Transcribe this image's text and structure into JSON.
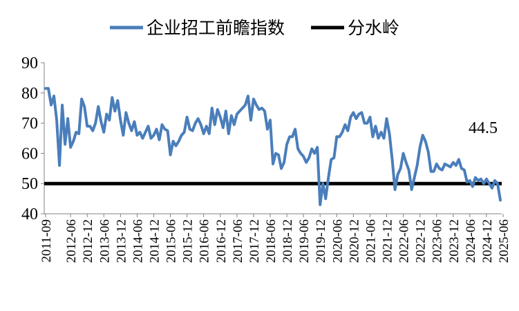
{
  "chart_data": {
    "type": "line",
    "title": "",
    "xlabel": "",
    "ylabel": "",
    "ylim": [
      40,
      90
    ],
    "yticks": [
      "40",
      "50",
      "60",
      "70",
      "80",
      "90"
    ],
    "x_start": "2011-09",
    "x_step_months": 1,
    "xticks": [
      "2011-09",
      "2012-06",
      "2012-12",
      "2013-06",
      "2013-12",
      "2014-06",
      "2014-12",
      "2015-06",
      "2015-12",
      "2016-06",
      "2016-12",
      "2017-06",
      "2017-12",
      "2018-06",
      "2018-12",
      "2019-06",
      "2019-12",
      "2020-06",
      "2020-12",
      "2021-06",
      "2021-12",
      "2022-06",
      "2022-12",
      "2023-06",
      "2023-12",
      "2024-06",
      "2024-12",
      "2025-06"
    ],
    "grid": false,
    "legend_position": "top",
    "series": [
      {
        "name": "企业招工前瞻指数",
        "color": "#4a7ebb",
        "values": [
          81.5,
          81.5,
          76,
          79,
          71,
          56,
          76,
          63,
          71.5,
          62,
          64,
          67,
          66.5,
          78,
          75.5,
          69,
          69,
          67.5,
          70,
          75.5,
          70.5,
          67,
          73,
          71,
          78.5,
          74,
          77.5,
          71,
          66,
          73.5,
          70,
          67.5,
          70.5,
          66,
          67,
          65,
          67,
          69,
          65,
          66,
          68,
          64.5,
          69.5,
          68,
          67.5,
          59.5,
          64,
          62.5,
          64,
          66,
          67,
          72,
          68,
          67.5,
          70,
          71.5,
          69.5,
          66.5,
          69,
          66.5,
          75,
          69.5,
          74.5,
          72,
          68.5,
          74,
          66.5,
          72.5,
          69.5,
          73,
          74,
          75,
          76,
          79,
          71,
          78,
          76,
          74.5,
          75,
          74,
          68,
          71,
          56.5,
          60,
          59.5,
          55,
          57,
          63,
          65.5,
          65.5,
          68,
          61.5,
          60,
          59,
          57,
          58.5,
          61.5,
          60,
          62,
          43,
          50,
          45,
          52,
          58,
          58.5,
          65.5,
          65.5,
          67,
          69.5,
          67.5,
          72,
          73.5,
          71.5,
          73,
          73.5,
          70,
          70,
          72,
          65.5,
          69,
          65,
          67,
          65,
          71.5,
          66.5,
          58,
          48,
          53,
          55,
          60,
          57,
          54.5,
          48,
          52,
          56,
          62,
          66,
          64,
          60.5,
          54,
          54,
          56.5,
          55,
          54.5,
          56.5,
          56,
          55.5,
          57,
          56,
          58,
          55,
          54.5,
          50.5,
          51,
          49,
          52,
          51,
          51.5,
          50,
          51.5,
          50,
          48.5,
          51,
          50,
          44.5
        ]
      },
      {
        "name": "分水岭",
        "color": "#000000",
        "values": [
          50
        ]
      }
    ],
    "annotations": [
      {
        "text": "44.5"
      }
    ]
  }
}
